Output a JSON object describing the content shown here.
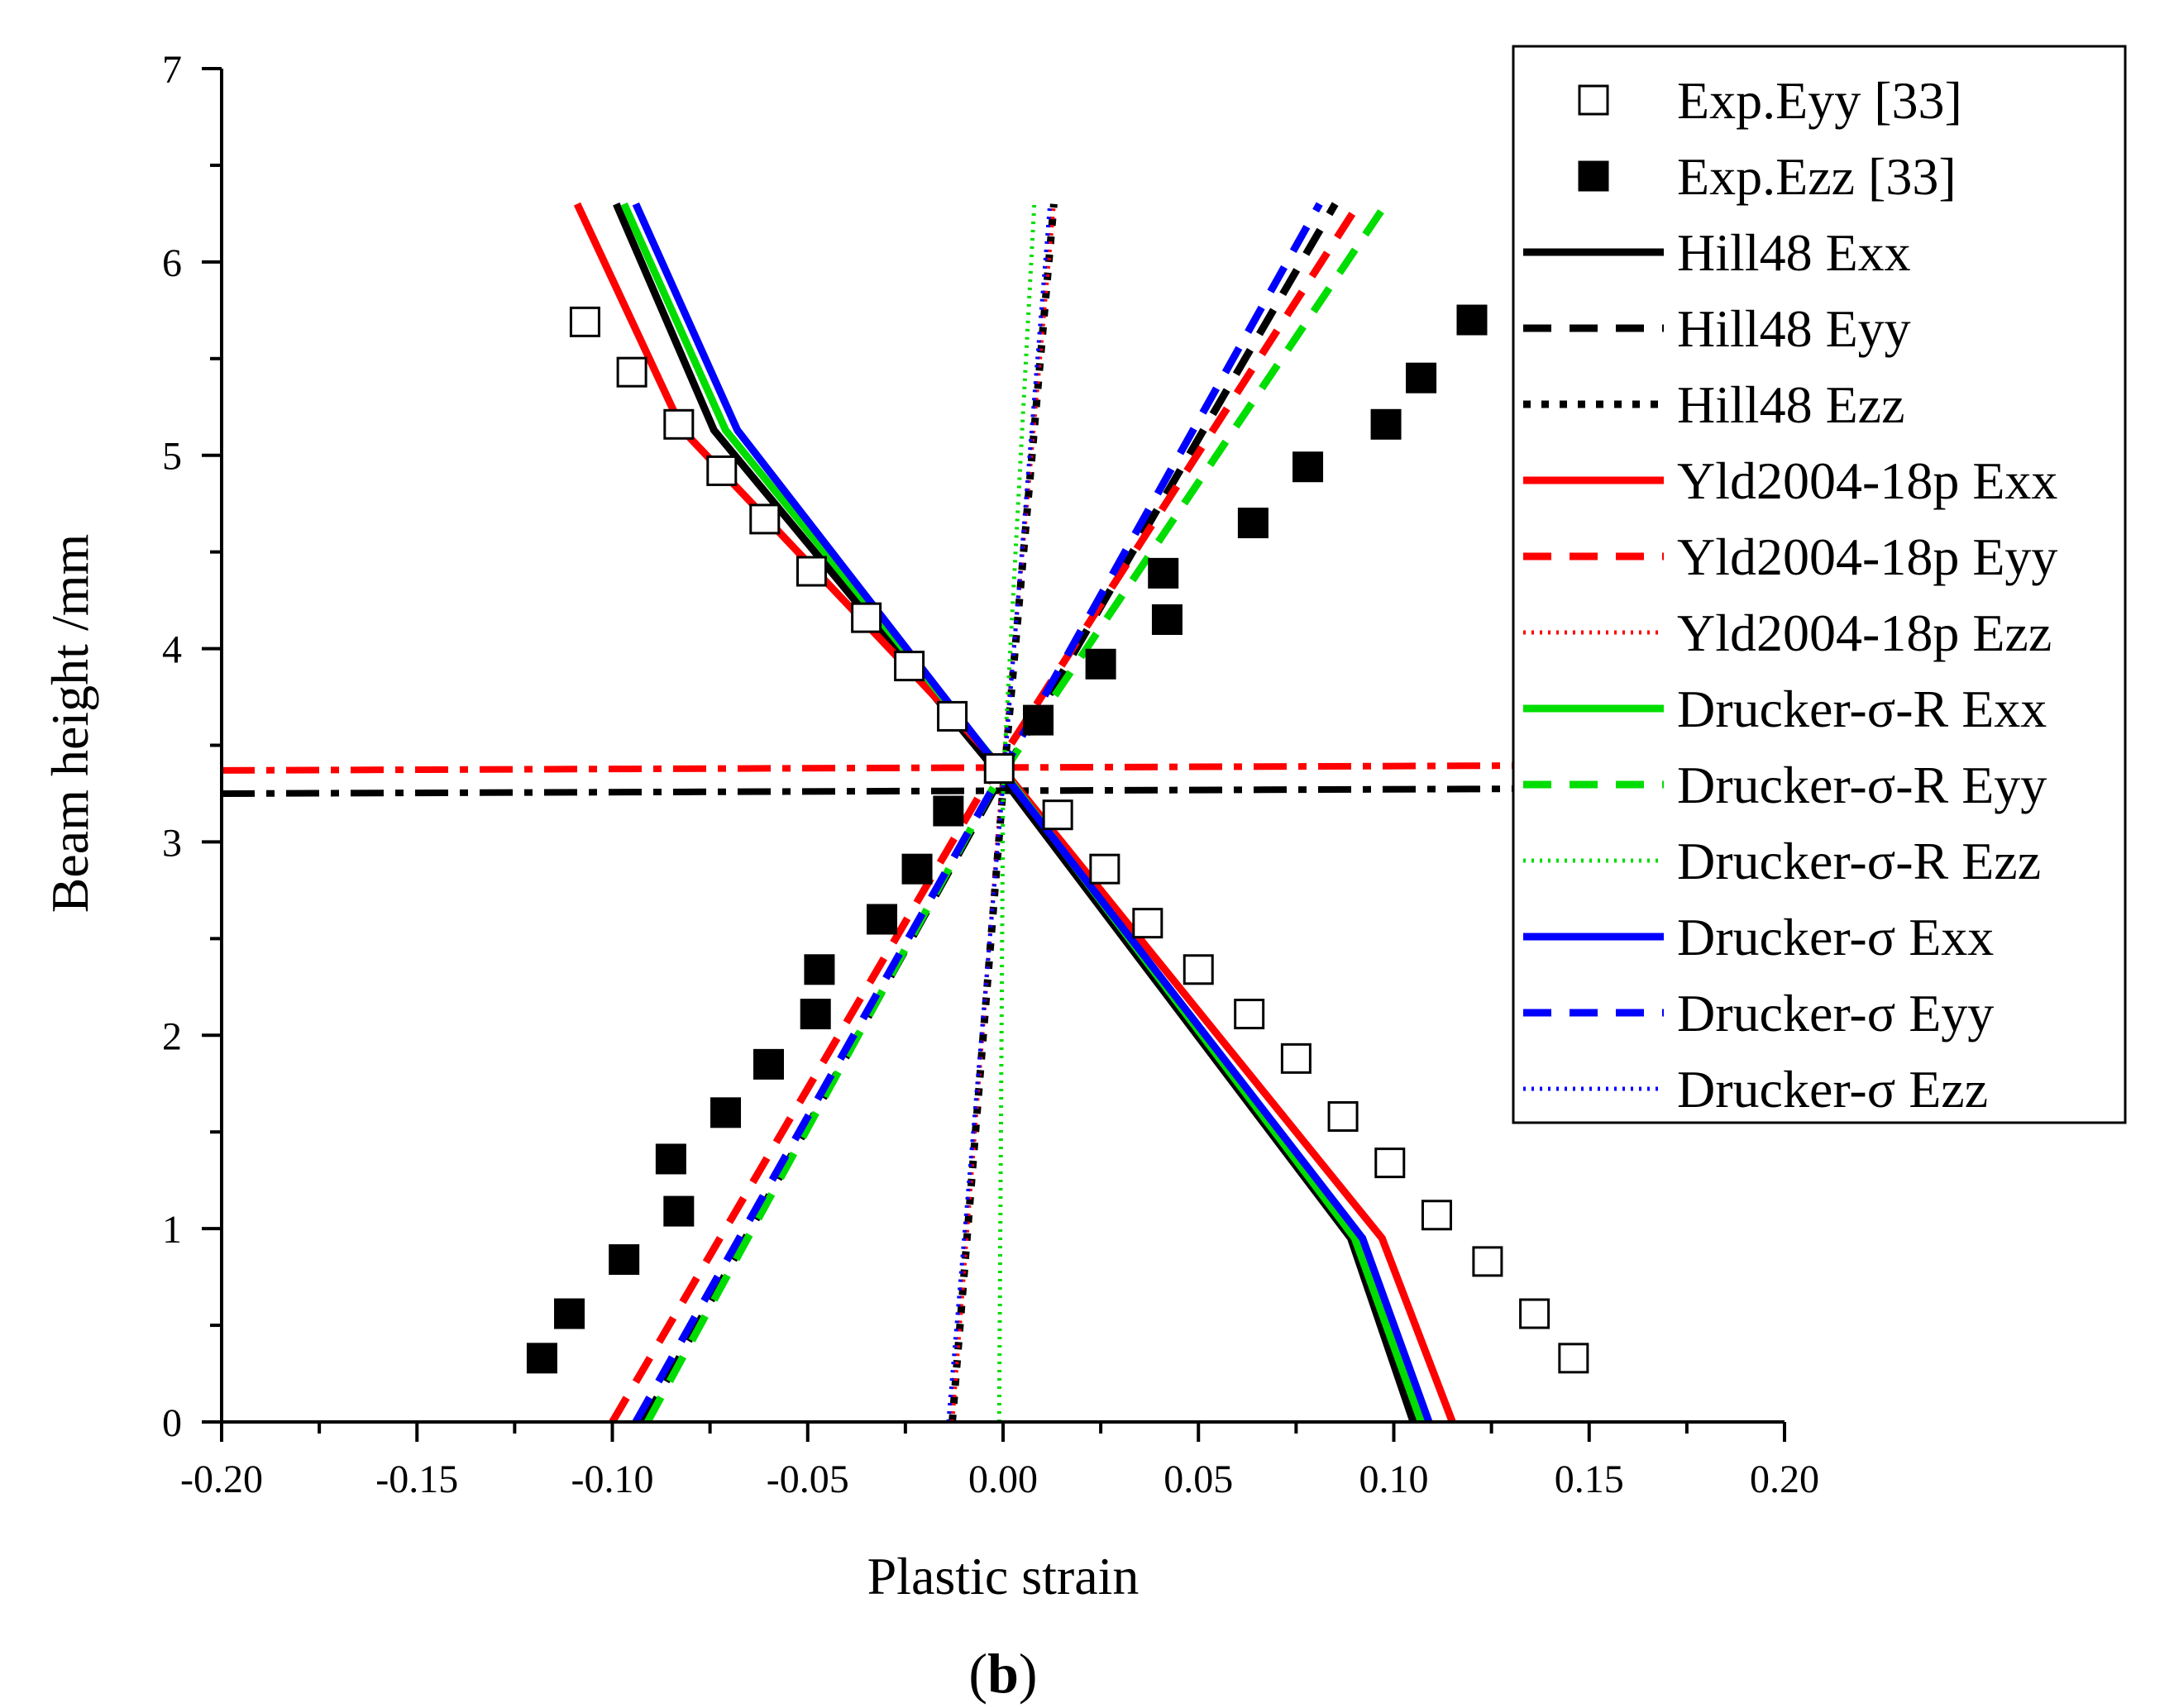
{
  "chart_data": {
    "type": "line",
    "panel_label": "b",
    "xlabel": "Plastic strain",
    "ylabel": "Beam height /mm",
    "xlim": [
      -0.2,
      0.2
    ],
    "ylim": [
      0,
      7
    ],
    "x_ticks": [
      -0.2,
      -0.15,
      -0.1,
      -0.05,
      0.0,
      0.05,
      0.1,
      0.15,
      0.2
    ],
    "x_tick_labels": [
      "-0.20",
      "-0.15",
      "-0.10",
      "-0.05",
      "0.00",
      "0.05",
      "0.10",
      "0.15",
      "0.20"
    ],
    "y_ticks": [
      0,
      1,
      2,
      3,
      4,
      5,
      6,
      7
    ],
    "y_tick_labels": [
      "0",
      "1",
      "2",
      "3",
      "4",
      "5",
      "6",
      "7"
    ],
    "grid": false,
    "legend_position": "top-right",
    "reference_lines": [
      {
        "style": "dashdot",
        "color": "#ff0000",
        "x": [
          -0.2,
          0.2
        ],
        "y": [
          3.37,
          3.4
        ]
      },
      {
        "style": "dashdot",
        "color": "#000000",
        "x": [
          -0.2,
          0.2
        ],
        "y": [
          3.25,
          3.28
        ]
      }
    ],
    "series": [
      {
        "name": "Exp.Eyy [33]",
        "kind": "marker",
        "marker": "square-open",
        "color": "#000000",
        "x": [
          -0.107,
          -0.095,
          -0.083,
          -0.072,
          -0.061,
          -0.049,
          -0.035,
          -0.024,
          -0.013,
          -0.001,
          0.014,
          0.026,
          0.037,
          0.05,
          0.063,
          0.075,
          0.087,
          0.099,
          0.111,
          0.124,
          0.136,
          0.146
        ],
        "y": [
          5.69,
          5.43,
          5.16,
          4.92,
          4.67,
          4.4,
          4.16,
          3.91,
          3.65,
          3.38,
          3.14,
          2.86,
          2.58,
          2.34,
          2.11,
          1.88,
          1.58,
          1.34,
          1.07,
          0.83,
          0.56,
          0.33
        ]
      },
      {
        "name": "Exp.Ezz [33]",
        "kind": "marker",
        "marker": "square-filled",
        "color": "#000000",
        "x": [
          -0.118,
          -0.111,
          -0.097,
          -0.083,
          -0.085,
          -0.071,
          -0.06,
          -0.048,
          -0.047,
          -0.031,
          -0.022,
          -0.014,
          0.009,
          0.025,
          0.042,
          0.041,
          0.064,
          0.078,
          0.098,
          0.107,
          0.12
        ],
        "y": [
          0.33,
          0.56,
          0.84,
          1.09,
          1.36,
          1.6,
          1.85,
          2.11,
          2.34,
          2.6,
          2.86,
          3.16,
          3.63,
          3.92,
          4.15,
          4.39,
          4.65,
          4.94,
          5.16,
          5.4,
          5.7
        ]
      },
      {
        "name": "Hill48 Exx",
        "kind": "line",
        "style": "solid",
        "color": "#000000",
        "x": [
          -0.099,
          -0.074,
          0.001,
          0.089,
          0.105
        ],
        "y": [
          6.3,
          5.13,
          3.3,
          0.95,
          0.0
        ]
      },
      {
        "name": "Hill48 Eyy",
        "kind": "line",
        "style": "dash",
        "color": "#000000",
        "x": [
          -0.092,
          -0.002,
          0.085
        ],
        "y": [
          0.0,
          3.28,
          6.3
        ]
      },
      {
        "name": "Hill48 Ezz",
        "kind": "line",
        "style": "dot",
        "color": "#000000",
        "x": [
          -0.013,
          0.0,
          0.013
        ],
        "y": [
          0.0,
          3.28,
          6.3
        ]
      },
      {
        "name": "Yld2004-18p Exx",
        "kind": "line",
        "style": "solid",
        "color": "#ff0000",
        "x": [
          -0.109,
          -0.082,
          -0.001,
          0.097,
          0.115
        ],
        "y": [
          6.3,
          5.13,
          3.4,
          0.95,
          0.0
        ]
      },
      {
        "name": "Yld2004-18p Eyy",
        "kind": "line",
        "style": "dash",
        "color": "#ff0000",
        "x": [
          -0.1,
          -0.002,
          0.091
        ],
        "y": [
          0.0,
          3.38,
          6.3
        ]
      },
      {
        "name": "Yld2004-18p Ezz",
        "kind": "line",
        "style": "fine-dot",
        "color": "#ff0000",
        "x": [
          -0.013,
          0.0,
          0.013
        ],
        "y": [
          0.0,
          3.38,
          6.3
        ]
      },
      {
        "name": "Drucker-σ-R Exx",
        "kind": "line",
        "style": "solid",
        "color": "#00dd00",
        "x": [
          -0.097,
          -0.071,
          0.001,
          0.09,
          0.107
        ],
        "y": [
          6.3,
          5.13,
          3.34,
          0.95,
          0.0
        ]
      },
      {
        "name": "Drucker-σ-R Eyy",
        "kind": "line",
        "style": "dash",
        "color": "#00dd00",
        "x": [
          -0.091,
          -0.002,
          0.098
        ],
        "y": [
          0.0,
          3.3,
          6.3
        ]
      },
      {
        "name": "Drucker-σ-R Ezz",
        "kind": "line",
        "style": "fine-dot",
        "color": "#00dd00",
        "x": [
          -0.001,
          0.0,
          0.008
        ],
        "y": [
          0.0,
          3.3,
          6.3
        ]
      },
      {
        "name": "Drucker-σ Exx",
        "kind": "line",
        "style": "solid",
        "color": "#0000ff",
        "x": [
          -0.094,
          -0.068,
          0.001,
          0.092,
          0.109
        ],
        "y": [
          6.3,
          5.13,
          3.33,
          0.95,
          0.0
        ]
      },
      {
        "name": "Drucker-σ Eyy",
        "kind": "line",
        "style": "dash",
        "color": "#0000ff",
        "x": [
          -0.094,
          -0.002,
          0.081
        ],
        "y": [
          0.0,
          3.3,
          6.3
        ]
      },
      {
        "name": "Drucker-σ Ezz",
        "kind": "line",
        "style": "fine-dot",
        "color": "#0000ff",
        "x": [
          -0.014,
          0.0,
          0.012
        ],
        "y": [
          0.0,
          3.3,
          6.3
        ]
      }
    ]
  }
}
